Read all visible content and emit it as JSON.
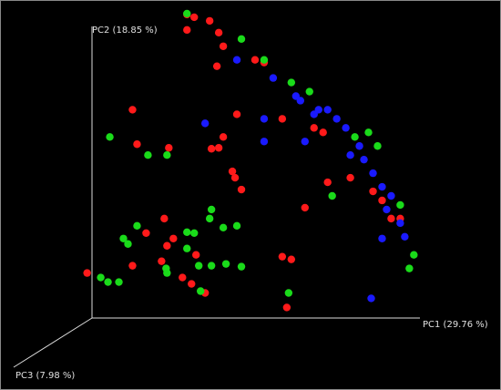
{
  "chart_data": {
    "type": "scatter",
    "x_label": "PC1 (29.76 %)",
    "y_label": "PC2 (18.85 %)",
    "z_label": "PC3 (7.98 %)",
    "xlim": [
      -100,
      450
    ],
    "ylim": [
      -80,
      348
    ],
    "series": [
      {
        "color": "#ff1a1a",
        "x": [
          105,
          113,
          130,
          105,
          140,
          145,
          180,
          190,
          138,
          45,
          160,
          50,
          85,
          145,
          140,
          132,
          155,
          158,
          165,
          210,
          255,
          260,
          235,
          285,
          80,
          90,
          60,
          45,
          83,
          77,
          100,
          110,
          125,
          -5,
          115,
          210,
          220,
          215,
          310,
          320,
          330,
          245,
          340
        ],
        "values": [
          333,
          330,
          326,
          316,
          313,
          298,
          283,
          280,
          276,
          228,
          223,
          190,
          186,
          198,
          186,
          185,
          160,
          153,
          140,
          218,
          203,
          148,
          120,
          153,
          108,
          86,
          92,
          56,
          78,
          61,
          43,
          36,
          26,
          48,
          68,
          66,
          63,
          10,
          138,
          128,
          108,
          208,
          108
        ]
      },
      {
        "color": "#1adb1a",
        "x": [
          105,
          165,
          190,
          20,
          62,
          83,
          132,
          130,
          145,
          160,
          113,
          105,
          50,
          35,
          40,
          10,
          18,
          30,
          83,
          82,
          105,
          118,
          132,
          148,
          165,
          120,
          217,
          305,
          315,
          290,
          340,
          355,
          350,
          265,
          220,
          240
        ],
        "values": [
          334,
          306,
          283,
          198,
          178,
          178,
          118,
          108,
          98,
          100,
          92,
          93,
          100,
          86,
          80,
          43,
          38,
          38,
          48,
          53,
          75,
          56,
          56,
          58,
          55,
          28,
          26,
          203,
          188,
          198,
          123,
          68,
          53,
          133,
          258,
          248
        ]
      },
      {
        "color": "#1a1aff",
        "x": [
          160,
          200,
          125,
          190,
          190,
          235,
          250,
          230,
          270,
          280,
          295,
          300,
          310,
          320,
          330,
          340,
          308,
          320,
          345,
          260,
          285,
          325,
          225,
          245
        ],
        "values": [
          283,
          263,
          213,
          218,
          193,
          193,
          228,
          238,
          218,
          208,
          188,
          173,
          158,
          143,
          133,
          103,
          20,
          86,
          88,
          228,
          178,
          118,
          243,
          223
        ]
      }
    ]
  }
}
